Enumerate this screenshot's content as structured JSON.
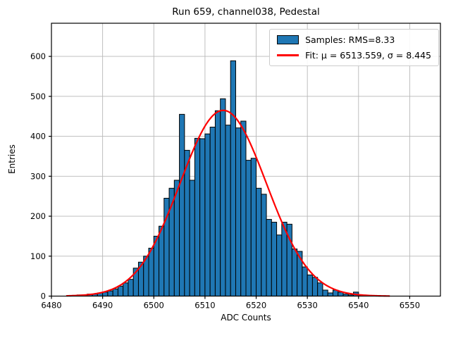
{
  "figure": {
    "title": "Run 659, channel038, Pedestal",
    "xlabel": "ADC Counts",
    "ylabel": "Entries"
  },
  "legend": {
    "position": "upper right",
    "entries": [
      {
        "swatch": "patch",
        "label": "Samples: RMS=8.33"
      },
      {
        "swatch": "line",
        "label": "Fit: μ = 6513.559, σ = 8.445"
      }
    ]
  },
  "chart_data": {
    "type": "bar",
    "subtype": "histogram-with-gaussian-fit",
    "title": "Run 659, channel038, Pedestal",
    "xlabel": "ADC Counts",
    "ylabel": "Entries",
    "bin_start": 6484,
    "bin_width": 1,
    "counts": [
      2,
      3,
      3,
      5,
      5,
      8,
      10,
      13,
      18,
      25,
      33,
      42,
      70,
      85,
      100,
      120,
      150,
      175,
      245,
      270,
      290,
      455,
      365,
      290,
      395,
      394,
      406,
      423,
      464,
      494,
      428,
      589,
      421,
      438,
      340,
      345,
      270,
      255,
      192,
      185,
      153,
      185,
      180,
      118,
      112,
      73,
      53,
      47,
      33,
      15,
      8,
      15,
      10,
      5,
      3,
      10,
      3
    ],
    "fit": {
      "mu": 6513.559,
      "sigma": 8.445,
      "amplitude": 465,
      "x_min": 6483.0,
      "x_max": 6546.0
    },
    "stats": {
      "rms": 8.33
    },
    "xlim": [
      6480,
      6556
    ],
    "ylim": [
      0,
      683
    ],
    "xticks": [
      6480,
      6490,
      6500,
      6510,
      6520,
      6530,
      6540,
      6550
    ],
    "yticks": [
      0,
      100,
      200,
      300,
      400,
      500,
      600
    ],
    "grid": true,
    "legend_position": "upper right",
    "colors": {
      "bar_fill": "#1f77b4",
      "bar_edge": "#000000",
      "fit_line": "#ff0000",
      "grid": "#b8b8b8",
      "spine": "#000000",
      "background": "#ffffff"
    }
  }
}
